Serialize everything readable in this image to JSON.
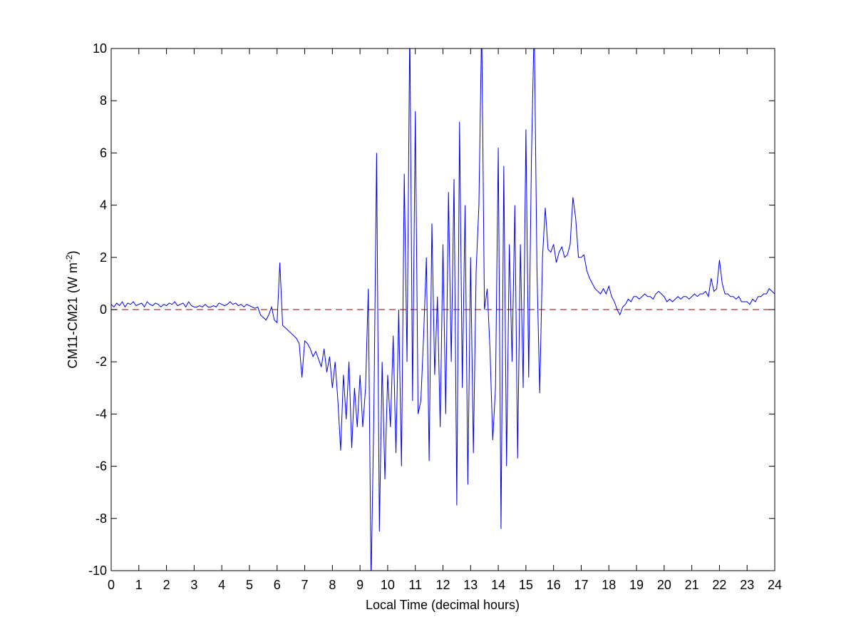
{
  "chart_data": {
    "type": "line",
    "x_label": "Local Time (decimal hours)",
    "y_label": {
      "text": "CM11-CM21 (W m",
      "superscript": "-2",
      "suffix": ")"
    },
    "xlim": [
      0,
      24
    ],
    "xticks": [
      0,
      1,
      2,
      3,
      4,
      5,
      6,
      7,
      8,
      9,
      10,
      11,
      12,
      13,
      14,
      15,
      16,
      17,
      18,
      19,
      20,
      21,
      22,
      23,
      24
    ],
    "ylim": [
      -10,
      10
    ],
    "yticks": [
      -10,
      -8,
      -6,
      -4,
      -2,
      0,
      2,
      4,
      6,
      8,
      10
    ],
    "reference_line": {
      "value": 0,
      "color": "#b03030",
      "dashed": true
    },
    "x": [
      0,
      0.1,
      0.2,
      0.3,
      0.4,
      0.5,
      0.6,
      0.7,
      0.8,
      0.9,
      1,
      1.1,
      1.2,
      1.3,
      1.4,
      1.5,
      1.6,
      1.7,
      1.8,
      1.9,
      2,
      2.1,
      2.2,
      2.3,
      2.4,
      2.5,
      2.6,
      2.7,
      2.8,
      2.9,
      3,
      3.1,
      3.2,
      3.3,
      3.4,
      3.5,
      3.6,
      3.7,
      3.8,
      3.9,
      4,
      4.1,
      4.2,
      4.3,
      4.4,
      4.5,
      4.6,
      4.7,
      4.8,
      4.9,
      5,
      5.1,
      5.2,
      5.3,
      5.4,
      5.5,
      5.6,
      5.7,
      5.8,
      5.9,
      6,
      6.1,
      6.2,
      6.3,
      6.4,
      6.5,
      6.6,
      6.7,
      6.8,
      6.9,
      7,
      7.1,
      7.2,
      7.3,
      7.4,
      7.5,
      7.6,
      7.7,
      7.8,
      7.9,
      8,
      8.1,
      8.2,
      8.3,
      8.4,
      8.5,
      8.6,
      8.7,
      8.8,
      8.9,
      9,
      9.1,
      9.2,
      9.3,
      9.4,
      9.5,
      9.6,
      9.7,
      9.8,
      9.9,
      10,
      10.1,
      10.2,
      10.3,
      10.4,
      10.5,
      10.6,
      10.7,
      10.8,
      10.9,
      11,
      11.1,
      11.2,
      11.3,
      11.4,
      11.5,
      11.6,
      11.7,
      11.8,
      11.9,
      12,
      12.1,
      12.2,
      12.3,
      12.4,
      12.5,
      12.6,
      12.7,
      12.8,
      12.9,
      13,
      13.1,
      13.2,
      13.3,
      13.4,
      13.5,
      13.6,
      13.7,
      13.8,
      13.9,
      14,
      14.1,
      14.2,
      14.3,
      14.4,
      14.5,
      14.6,
      14.7,
      14.8,
      14.9,
      15,
      15.1,
      15.2,
      15.3,
      15.4,
      15.5,
      15.6,
      15.7,
      15.8,
      15.9,
      16,
      16.1,
      16.2,
      16.3,
      16.4,
      16.5,
      16.6,
      16.7,
      16.8,
      16.9,
      17,
      17.1,
      17.2,
      17.3,
      17.4,
      17.5,
      17.6,
      17.7,
      17.8,
      17.9,
      18,
      18.1,
      18.2,
      18.3,
      18.4,
      18.5,
      18.6,
      18.7,
      18.8,
      18.9,
      19,
      19.1,
      19.2,
      19.3,
      19.4,
      19.5,
      19.6,
      19.7,
      19.8,
      19.9,
      20,
      20.1,
      20.2,
      20.3,
      20.4,
      20.5,
      20.6,
      20.7,
      20.8,
      20.9,
      21,
      21.1,
      21.2,
      21.3,
      21.4,
      21.5,
      21.6,
      21.7,
      21.8,
      21.9,
      22,
      22.1,
      22.2,
      22.3,
      22.4,
      22.5,
      22.6,
      22.7,
      22.8,
      22.9,
      23,
      23.1,
      23.2,
      23.3,
      23.4,
      23.5,
      23.6,
      23.7,
      23.8,
      23.9,
      24
    ],
    "series": [
      {
        "color": "#0000ee",
        "values": [
          0.2,
          0.1,
          0.25,
          0.15,
          0.3,
          0.1,
          0.25,
          0.2,
          0.3,
          0.15,
          0.2,
          0.25,
          0.1,
          0.3,
          0.2,
          0.15,
          0.25,
          0.2,
          0.1,
          0.2,
          0.15,
          0.25,
          0.2,
          0.3,
          0.15,
          0.2,
          0.25,
          0.1,
          0.3,
          0.15,
          0.1,
          0.1,
          0.15,
          0.1,
          0.2,
          0.1,
          0.1,
          0.15,
          0.1,
          0.25,
          0.2,
          0.15,
          0.2,
          0.3,
          0.2,
          0.25,
          0.15,
          0.2,
          0.1,
          0.2,
          0.15,
          0.1,
          0.05,
          0.1,
          -0.2,
          -0.3,
          -0.4,
          -0.2,
          0.1,
          -0.4,
          -0.5,
          1.8,
          -0.6,
          -0.7,
          -0.8,
          -0.9,
          -1.0,
          -1.1,
          -1.3,
          -2.6,
          -1.2,
          -1.3,
          -1.5,
          -1.8,
          -1.6,
          -1.9,
          -2.2,
          -1.5,
          -2.4,
          -1.8,
          -3.0,
          -2.0,
          -3.5,
          -5.4,
          -2.5,
          -4.2,
          -2.0,
          -5.3,
          -3.0,
          -4.5,
          -2.5,
          -4.5,
          -3.0,
          0.8,
          -10.5,
          -4.0,
          6.0,
          -8.5,
          -2.0,
          -6.5,
          -2.5,
          -4.5,
          -1.0,
          -5.5,
          0.0,
          -6.0,
          5.2,
          -2.0,
          11.0,
          -3.5,
          7.6,
          -4.0,
          -3.5,
          -1.0,
          2.0,
          -5.8,
          3.3,
          -2.5,
          0.5,
          -4.5,
          2.5,
          -4.0,
          4.5,
          -2.0,
          5.0,
          -7.5,
          7.2,
          -3.0,
          4.0,
          -6.7,
          2.0,
          -5.5,
          1.5,
          4.0,
          11.0,
          0.0,
          0.8,
          -1.5,
          -5.0,
          -3.0,
          6.2,
          -8.4,
          5.5,
          -6.0,
          2.5,
          -2.0,
          4.0,
          -5.7,
          2.5,
          -3.0,
          6.9,
          -2.6,
          5.8,
          11.0,
          1.5,
          -3.2,
          2.0,
          3.9,
          2.3,
          2.2,
          2.5,
          1.8,
          2.2,
          2.4,
          2.0,
          2.1,
          2.5,
          4.3,
          3.5,
          2.0,
          2.0,
          2.1,
          1.5,
          1.2,
          1.0,
          0.8,
          0.7,
          0.6,
          0.8,
          0.6,
          0.9,
          0.5,
          0.3,
          0.0,
          -0.2,
          0.1,
          0.2,
          0.4,
          0.3,
          0.5,
          0.5,
          0.4,
          0.5,
          0.6,
          0.5,
          0.5,
          0.4,
          0.6,
          0.7,
          0.6,
          0.5,
          0.3,
          0.4,
          0.3,
          0.4,
          0.5,
          0.4,
          0.5,
          0.5,
          0.4,
          0.5,
          0.6,
          0.5,
          0.6,
          0.6,
          0.7,
          0.5,
          1.2,
          0.7,
          0.8,
          1.9,
          1.0,
          0.6,
          0.6,
          0.5,
          0.5,
          0.4,
          0.5,
          0.3,
          0.3,
          0.3,
          0.2,
          0.4,
          0.3,
          0.5,
          0.5,
          0.6,
          0.6,
          0.8,
          0.7,
          0.6
        ]
      }
    ]
  }
}
